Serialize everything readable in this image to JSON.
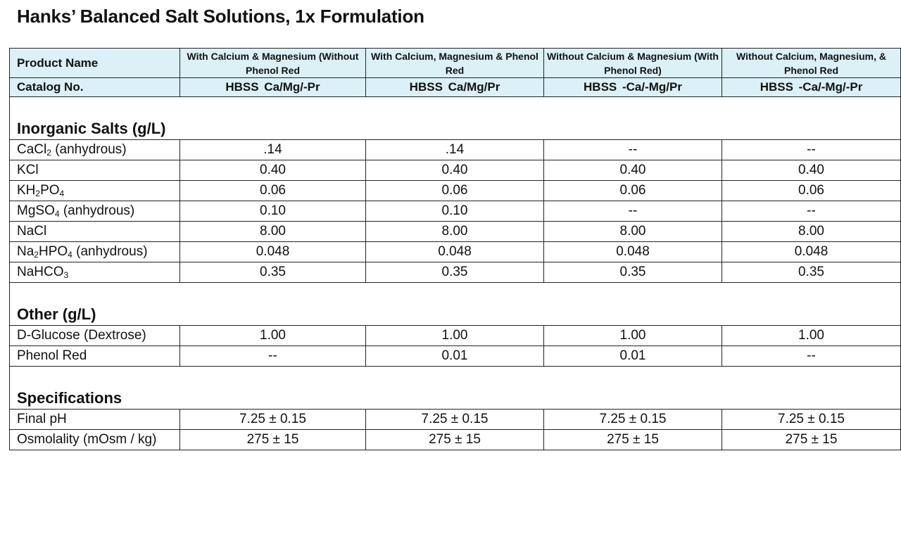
{
  "title": "Hanks’ Balanced Salt Solutions, 1x Formulation",
  "header": {
    "product_label": "Product Name",
    "catalog_label": "Catalog No.",
    "products": [
      {
        "name": "With Calcium & Magnesium (Without Phenol Red",
        "catalog": "HBSS  Ca/Mg/-Pr"
      },
      {
        "name": "With Calcium, Magnesium & Phenol Red",
        "catalog": "HBSS  Ca/Mg/Pr"
      },
      {
        "name": "Without Calcium & Magnesium (With Phenol Red)",
        "catalog": "HBSS  -Ca/-Mg/Pr"
      },
      {
        "name": "Without Calcium, Magnesium, & Phenol Red",
        "catalog": "HBSS  -Ca/-Mg/-Pr"
      }
    ]
  },
  "sections": [
    {
      "title": "Inorganic Salts (g/L)",
      "rows": [
        {
          "label": "CaCl₂ (anhydrous)",
          "values": [
            ".14",
            ".14",
            "--",
            "--"
          ]
        },
        {
          "label": "KCl",
          "values": [
            "0.40",
            "0.40",
            "0.40",
            "0.40"
          ]
        },
        {
          "label": "KH₂PO₄",
          "values": [
            "0.06",
            "0.06",
            "0.06",
            "0.06"
          ]
        },
        {
          "label": "MgSO₄ (anhydrous)",
          "values": [
            "0.10",
            "0.10",
            "--",
            "--"
          ]
        },
        {
          "label": "NaCl",
          "values": [
            "8.00",
            "8.00",
            "8.00",
            "8.00"
          ]
        },
        {
          "label": "Na₂HPO₄ (anhydrous)",
          "values": [
            "0.048",
            "0.048",
            "0.048",
            "0.048"
          ]
        },
        {
          "label": "NaHCO₃",
          "values": [
            "0.35",
            "0.35",
            "0.35",
            "0.35"
          ]
        }
      ]
    },
    {
      "title": "Other (g/L)",
      "rows": [
        {
          "label": "D-Glucose (Dextrose)",
          "values": [
            "1.00",
            "1.00",
            "1.00",
            "1.00"
          ]
        },
        {
          "label": "Phenol Red",
          "values": [
            "--",
            "0.01",
            "0.01",
            "--"
          ]
        }
      ]
    },
    {
      "title": "Specifications",
      "rows": [
        {
          "label": "Final pH",
          "values": [
            "7.25 ± 0.15",
            "7.25 ± 0.15",
            "7.25 ± 0.15",
            "7.25 ± 0.15"
          ]
        },
        {
          "label": "Osmolality (mOsm / kg)",
          "values": [
            "275 ± 15",
            "275 ± 15",
            "275 ± 15",
            "275 ± 15"
          ]
        }
      ]
    }
  ]
}
